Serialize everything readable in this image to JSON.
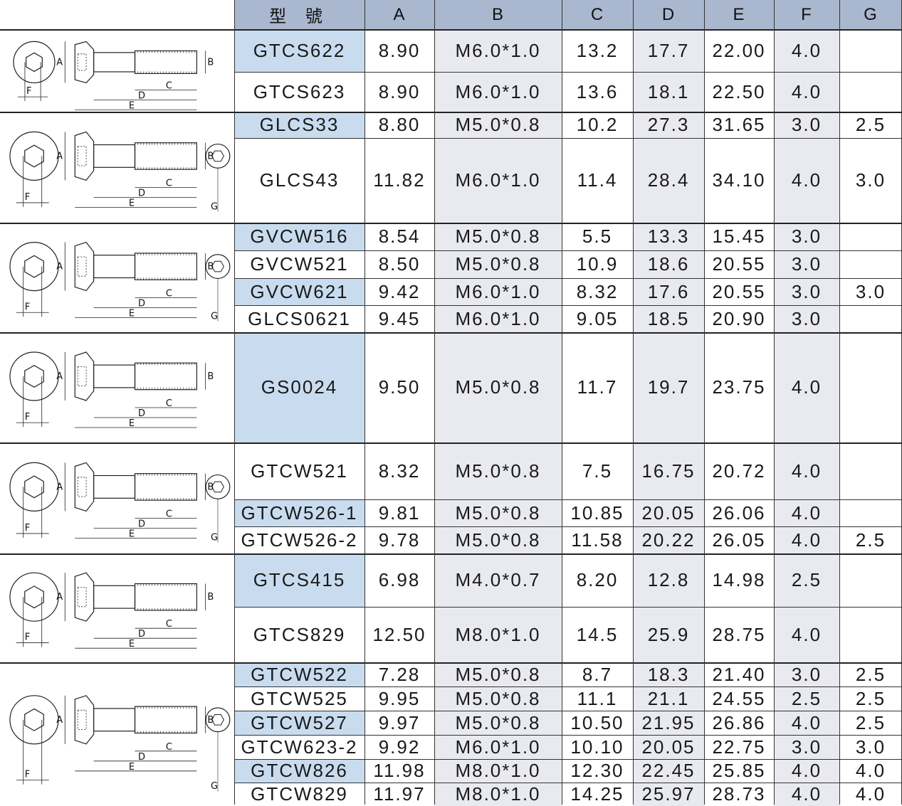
{
  "header": {
    "model": "型 號",
    "cols": [
      "A",
      "B",
      "C",
      "D",
      "E",
      "F",
      "G"
    ]
  },
  "groups": [
    {
      "diagram_labels": {
        "A": "A",
        "B": "B",
        "C": "C",
        "D": "D",
        "E": "E",
        "F": "F",
        "G": ""
      },
      "rows": [
        {
          "model": "GTCS622",
          "A": "8.90",
          "B": "M6.0*1.0",
          "C": "13.2",
          "D": "17.7",
          "E": "22.00",
          "F": "4.0",
          "G": "",
          "highlight": true
        },
        {
          "model": "GTCS623",
          "A": "8.90",
          "B": "M6.0*1.0",
          "C": "13.6",
          "D": "18.1",
          "E": "22.50",
          "F": "4.0",
          "G": "",
          "highlight": false
        }
      ]
    },
    {
      "diagram_labels": {
        "A": "A",
        "B": "B",
        "C": "C",
        "D": "D",
        "E": "E",
        "F": "F",
        "G": "G"
      },
      "rows": [
        {
          "model": "GLCS33",
          "A": "8.80",
          "B": "M5.0*0.8",
          "C": "10.2",
          "D": "27.3",
          "E": "31.65",
          "F": "3.0",
          "G": "2.5",
          "highlight": true
        },
        {
          "model": "GLCS43",
          "A": "11.82",
          "B": "M6.0*1.0",
          "C": "11.4",
          "D": "28.4",
          "E": "34.10",
          "F": "4.0",
          "G": "3.0",
          "highlight": false
        }
      ]
    },
    {
      "diagram_labels": {
        "A": "A",
        "B": "B",
        "C": "C",
        "D": "D",
        "E": "E",
        "F": "F",
        "G": "G"
      },
      "rows": [
        {
          "model": "GVCW516",
          "A": "8.54",
          "B": "M5.0*0.8",
          "C": "5.5",
          "D": "13.3",
          "E": "15.45",
          "F": "3.0",
          "G": "",
          "highlight": true
        },
        {
          "model": "GVCW521",
          "A": "8.50",
          "B": "M5.0*0.8",
          "C": "10.9",
          "D": "18.6",
          "E": "20.55",
          "F": "3.0",
          "G": "",
          "highlight": false
        },
        {
          "model": "GVCW621",
          "A": "9.42",
          "B": "M6.0*1.0",
          "C": "8.32",
          "D": "17.6",
          "E": "20.55",
          "F": "3.0",
          "G": "3.0",
          "highlight": true
        },
        {
          "model": "GLCS0621",
          "A": "9.45",
          "B": "M6.0*1.0",
          "C": "9.05",
          "D": "18.5",
          "E": "20.90",
          "F": "3.0",
          "G": "",
          "highlight": false
        }
      ]
    },
    {
      "diagram_labels": {
        "A": "A",
        "B": "B",
        "C": "C",
        "D": "D",
        "E": "E",
        "F": "F",
        "G": ""
      },
      "rows": [
        {
          "model": "GS0024",
          "A": "9.50",
          "B": "M5.0*0.8",
          "C": "11.7",
          "D": "19.7",
          "E": "23.75",
          "F": "4.0",
          "G": "",
          "highlight": true
        }
      ]
    },
    {
      "diagram_labels": {
        "A": "A",
        "B": "B",
        "C": "C",
        "D": "D",
        "E": "E",
        "F": "F",
        "G": "G"
      },
      "rows": [
        {
          "model": "GTCW521",
          "A": "8.32",
          "B": "M5.0*0.8",
          "C": "7.5",
          "D": "16.75",
          "E": "20.72",
          "F": "4.0",
          "G": "",
          "highlight": false
        },
        {
          "model": "GTCW526-1",
          "A": "9.81",
          "B": "M5.0*0.8",
          "C": "10.85",
          "D": "20.05",
          "E": "26.06",
          "F": "4.0",
          "G": "",
          "highlight": true
        },
        {
          "model": "GTCW526-2",
          "A": "9.78",
          "B": "M5.0*0.8",
          "C": "11.58",
          "D": "20.22",
          "E": "26.05",
          "F": "4.0",
          "G": "2.5",
          "highlight": false
        }
      ]
    },
    {
      "diagram_labels": {
        "A": "A",
        "B": "B",
        "C": "C",
        "D": "D",
        "E": "E",
        "F": "F",
        "G": ""
      },
      "rows": [
        {
          "model": "GTCS415",
          "A": "6.98",
          "B": "M4.0*0.7",
          "C": "8.20",
          "D": "12.8",
          "E": "14.98",
          "F": "2.5",
          "G": "",
          "highlight": true
        },
        {
          "model": "GTCS829",
          "A": "12.50",
          "B": "M8.0*1.0",
          "C": "14.5",
          "D": "25.9",
          "E": "28.75",
          "F": "4.0",
          "G": "",
          "highlight": false
        }
      ]
    },
    {
      "diagram_labels": {
        "A": "A",
        "B": "B",
        "C": "C",
        "D": "D",
        "E": "E",
        "F": "F",
        "G": "G"
      },
      "rows": [
        {
          "model": "GTCW522",
          "A": "7.28",
          "B": "M5.0*0.8",
          "C": "8.7",
          "D": "18.3",
          "E": "21.40",
          "F": "3.0",
          "G": "2.5",
          "highlight": true
        },
        {
          "model": "GTCW525",
          "A": "9.95",
          "B": "M5.0*0.8",
          "C": "11.1",
          "D": "21.1",
          "E": "24.55",
          "F": "2.5",
          "G": "2.5",
          "highlight": false
        },
        {
          "model": "GTCW527",
          "A": "9.97",
          "B": "M5.0*0.8",
          "C": "10.50",
          "D": "21.95",
          "E": "26.86",
          "F": "4.0",
          "G": "2.5",
          "highlight": true
        },
        {
          "model": "GTCW623-2",
          "A": "9.92",
          "B": "M6.0*1.0",
          "C": "10.10",
          "D": "20.05",
          "E": "22.75",
          "F": "3.0",
          "G": "3.0",
          "highlight": false
        },
        {
          "model": "GTCW826",
          "A": "11.98",
          "B": "M8.0*1.0",
          "C": "12.30",
          "D": "22.45",
          "E": "25.85",
          "F": "4.0",
          "G": "4.0",
          "highlight": true
        },
        {
          "model": "GTCW829",
          "A": "11.97",
          "B": "M8.0*1.0",
          "C": "14.25",
          "D": "25.97",
          "E": "28.73",
          "F": "4.0",
          "G": "4.0",
          "highlight": false
        }
      ]
    }
  ]
}
